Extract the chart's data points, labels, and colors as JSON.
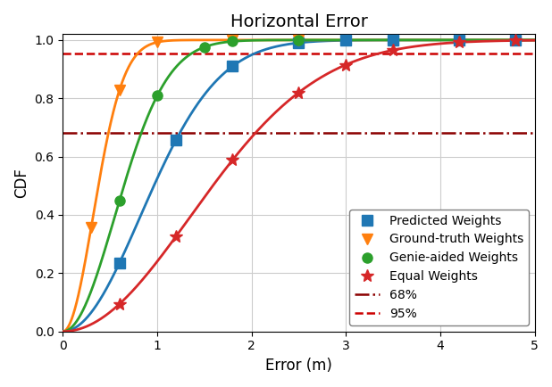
{
  "title": "Horizontal Error",
  "xlabel": "Error (m)",
  "ylabel": "CDF",
  "xlim": [
    0,
    5
  ],
  "ylim": [
    0,
    1.05
  ],
  "hline_68": 0.6827,
  "hline_95": 0.9545,
  "series": {
    "predicted": {
      "label": "Predicted Weights",
      "color": "#1f77b4",
      "marker": "s",
      "sigma": 0.82,
      "marker_x": [
        0.6,
        1.2,
        1.8,
        2.5,
        3.0,
        3.5,
        4.2,
        4.8
      ]
    },
    "ground_truth": {
      "label": "Ground-truth Weights",
      "color": "#ff7f0e",
      "marker": "v",
      "sigma": 0.32,
      "marker_x": [
        0.3,
        0.6,
        1.0,
        1.8,
        2.5
      ]
    },
    "genie": {
      "label": "Genie-aided Weights",
      "color": "#2ca02c",
      "marker": "o",
      "sigma": 0.55,
      "marker_x": [
        0.6,
        1.0,
        1.5,
        1.8,
        2.5
      ]
    },
    "equal": {
      "label": "Equal Weights",
      "color": "#d62728",
      "marker": "*",
      "sigma": 1.35,
      "marker_x": [
        0.6,
        1.2,
        1.8,
        2.5,
        3.0,
        3.5,
        4.2,
        4.8
      ]
    }
  },
  "background_color": "#ffffff",
  "grid_color": "#cccccc",
  "legend_loc": "lower right",
  "hline_68_color": "#8b0000",
  "hline_95_color": "#cc0000",
  "title_fontsize": 14,
  "axis_label_fontsize": 12,
  "tick_fontsize": 10,
  "legend_fontsize": 10,
  "marker_sizes": {
    "predicted": 8,
    "ground_truth": 8,
    "genie": 8,
    "equal": 10
  },
  "series_order": [
    "predicted",
    "ground_truth",
    "genie",
    "equal"
  ]
}
